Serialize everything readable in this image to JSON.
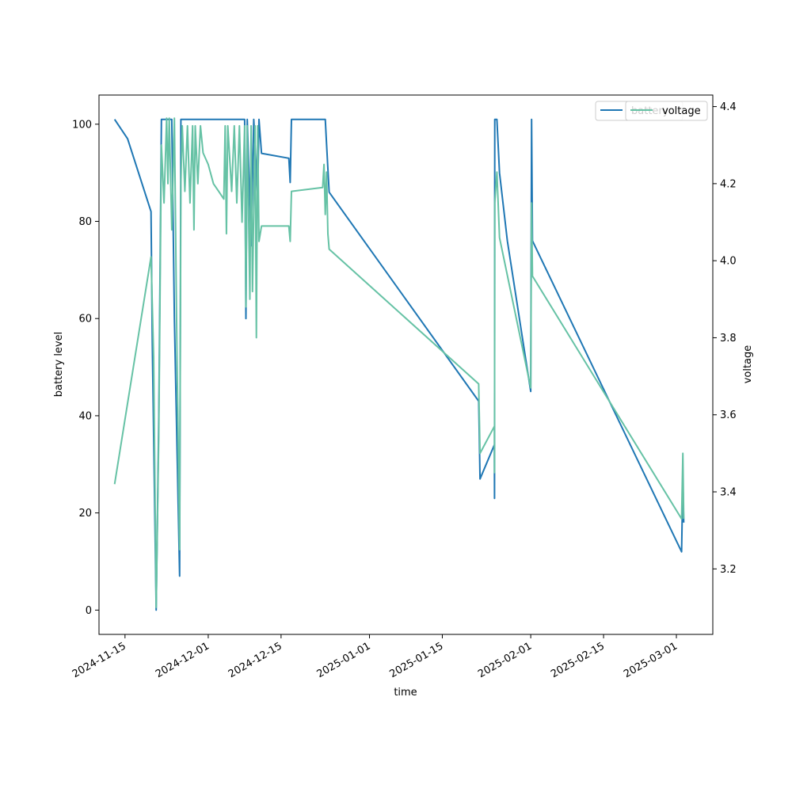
{
  "chart_data": {
    "type": "line",
    "title": "",
    "xlabel": "time",
    "ylabel": "battery level",
    "y2label": "voltage",
    "x_type": "date",
    "xlim": [
      "2024-11-10",
      "2025-03-08"
    ],
    "ylim": [
      -5,
      106
    ],
    "y2lim": [
      3.03,
      4.43
    ],
    "x_ticks": [
      "2024-11-15",
      "2024-12-01",
      "2024-12-15",
      "2025-01-01",
      "2025-01-15",
      "2025-02-01",
      "2025-02-15",
      "2025-03-01"
    ],
    "y_ticks": [
      0,
      20,
      40,
      60,
      80,
      100
    ],
    "y2_ticks": [
      3.2,
      3.4,
      3.6,
      3.8,
      4.0,
      4.2,
      4.4
    ],
    "grid": false,
    "legend_placement": "top-right",
    "series": [
      {
        "name": "battery",
        "axis": "left",
        "color": "#1f77b4",
        "points": [
          [
            "2024-11-13 00:00",
            101
          ],
          [
            "2024-11-15 12:00",
            97
          ],
          [
            "2024-11-20 00:00",
            82
          ],
          [
            "2024-11-20 06:00",
            55
          ],
          [
            "2024-11-21 00:00",
            0
          ],
          [
            "2024-11-21 12:00",
            40
          ],
          [
            "2024-11-22 00:00",
            101
          ],
          [
            "2024-11-24 00:00",
            101
          ],
          [
            "2024-11-24 12:00",
            60
          ],
          [
            "2024-11-25 12:00",
            7
          ],
          [
            "2024-11-25 18:00",
            101
          ],
          [
            "2024-12-08 00:00",
            101
          ],
          [
            "2024-12-08 06:00",
            60
          ],
          [
            "2024-12-08 12:00",
            101
          ],
          [
            "2024-12-09 06:00",
            75
          ],
          [
            "2024-12-09 18:00",
            101
          ],
          [
            "2024-12-10 12:00",
            85
          ],
          [
            "2024-12-10 18:00",
            101
          ],
          [
            "2024-12-11 06:00",
            94
          ],
          [
            "2024-12-16 12:00",
            93
          ],
          [
            "2024-12-16 18:00",
            88
          ],
          [
            "2024-12-17 00:00",
            101
          ],
          [
            "2024-12-23 12:00",
            101
          ],
          [
            "2024-12-23 18:00",
            96
          ],
          [
            "2024-12-24 06:00",
            86
          ],
          [
            "2025-01-22 00:00",
            43
          ],
          [
            "2025-01-22 06:00",
            27
          ],
          [
            "2025-01-25 00:00",
            34
          ],
          [
            "2025-01-25 01:00",
            23
          ],
          [
            "2025-01-25 02:00",
            101
          ],
          [
            "2025-01-25 12:00",
            101
          ],
          [
            "2025-01-26 00:00",
            90
          ],
          [
            "2025-01-27 12:00",
            76
          ],
          [
            "2025-02-01 00:00",
            45
          ],
          [
            "2025-02-01 04:00",
            101
          ],
          [
            "2025-02-01 08:00",
            76
          ],
          [
            "2025-03-02 00:00",
            12
          ],
          [
            "2025-03-02 06:00",
            27
          ],
          [
            "2025-03-02 10:00",
            18
          ]
        ]
      },
      {
        "name": "voltage",
        "axis": "right",
        "color": "#66c2a5",
        "points": [
          [
            "2024-11-13 00:00",
            3.42
          ],
          [
            "2024-11-20 00:00",
            4.01
          ],
          [
            "2024-11-20 12:00",
            3.75
          ],
          [
            "2024-11-21 00:00",
            3.1
          ],
          [
            "2024-11-21 12:00",
            3.55
          ],
          [
            "2024-11-22 00:00",
            4.3
          ],
          [
            "2024-11-22 12:00",
            4.15
          ],
          [
            "2024-11-23 00:00",
            4.37
          ],
          [
            "2024-11-23 06:00",
            4.2
          ],
          [
            "2024-11-23 12:00",
            4.37
          ],
          [
            "2024-11-24 00:00",
            4.08
          ],
          [
            "2024-11-24 12:00",
            4.37
          ],
          [
            "2024-11-25 00:00",
            3.75
          ],
          [
            "2024-11-25 12:00",
            3.25
          ],
          [
            "2024-11-25 18:00",
            4.2
          ],
          [
            "2024-11-26 00:00",
            4.35
          ],
          [
            "2024-11-26 12:00",
            4.18
          ],
          [
            "2024-11-27 00:00",
            4.35
          ],
          [
            "2024-11-27 12:00",
            4.15
          ],
          [
            "2024-11-28 00:00",
            4.35
          ],
          [
            "2024-11-28 06:00",
            4.08
          ],
          [
            "2024-11-28 12:00",
            4.35
          ],
          [
            "2024-11-29 00:00",
            4.2
          ],
          [
            "2024-11-29 12:00",
            4.35
          ],
          [
            "2024-11-30 00:00",
            4.28
          ],
          [
            "2024-12-01 00:00",
            4.25
          ],
          [
            "2024-12-02 00:00",
            4.2
          ],
          [
            "2024-12-03 00:00",
            4.18
          ],
          [
            "2024-12-04 00:00",
            4.16
          ],
          [
            "2024-12-04 06:00",
            4.35
          ],
          [
            "2024-12-04 12:00",
            4.07
          ],
          [
            "2024-12-04 18:00",
            4.35
          ],
          [
            "2024-12-05 12:00",
            4.18
          ],
          [
            "2024-12-06 00:00",
            4.35
          ],
          [
            "2024-12-06 12:00",
            4.15
          ],
          [
            "2024-12-07 00:00",
            4.35
          ],
          [
            "2024-12-07 12:00",
            4.1
          ],
          [
            "2024-12-08 00:00",
            4.35
          ],
          [
            "2024-12-08 06:00",
            3.88
          ],
          [
            "2024-12-08 12:00",
            4.35
          ],
          [
            "2024-12-09 00:00",
            3.9
          ],
          [
            "2024-12-09 06:00",
            4.35
          ],
          [
            "2024-12-09 12:00",
            3.92
          ],
          [
            "2024-12-10 00:00",
            4.35
          ],
          [
            "2024-12-10 06:00",
            3.8
          ],
          [
            "2024-12-10 12:00",
            4.35
          ],
          [
            "2024-12-10 18:00",
            4.05
          ],
          [
            "2024-12-11 06:00",
            4.09
          ],
          [
            "2024-12-16 12:00",
            4.09
          ],
          [
            "2024-12-16 18:00",
            4.05
          ],
          [
            "2024-12-17 00:00",
            4.18
          ],
          [
            "2024-12-23 00:00",
            4.19
          ],
          [
            "2024-12-23 06:00",
            4.25
          ],
          [
            "2024-12-23 12:00",
            4.12
          ],
          [
            "2024-12-23 18:00",
            4.23
          ],
          [
            "2024-12-24 00:00",
            4.07
          ],
          [
            "2024-12-24 06:00",
            4.03
          ],
          [
            "2025-01-22 00:00",
            3.68
          ],
          [
            "2025-01-22 06:00",
            3.5
          ],
          [
            "2025-01-25 00:00",
            3.57
          ],
          [
            "2025-01-25 01:00",
            3.45
          ],
          [
            "2025-01-25 02:00",
            4.15
          ],
          [
            "2025-01-25 12:00",
            4.23
          ],
          [
            "2025-01-26 00:00",
            4.06
          ],
          [
            "2025-02-01 00:00",
            3.67
          ],
          [
            "2025-02-01 04:00",
            4.15
          ],
          [
            "2025-02-01 08:00",
            3.96
          ],
          [
            "2025-03-02 00:00",
            3.33
          ],
          [
            "2025-03-02 06:00",
            3.5
          ],
          [
            "2025-03-02 10:00",
            3.33
          ]
        ]
      }
    ]
  }
}
